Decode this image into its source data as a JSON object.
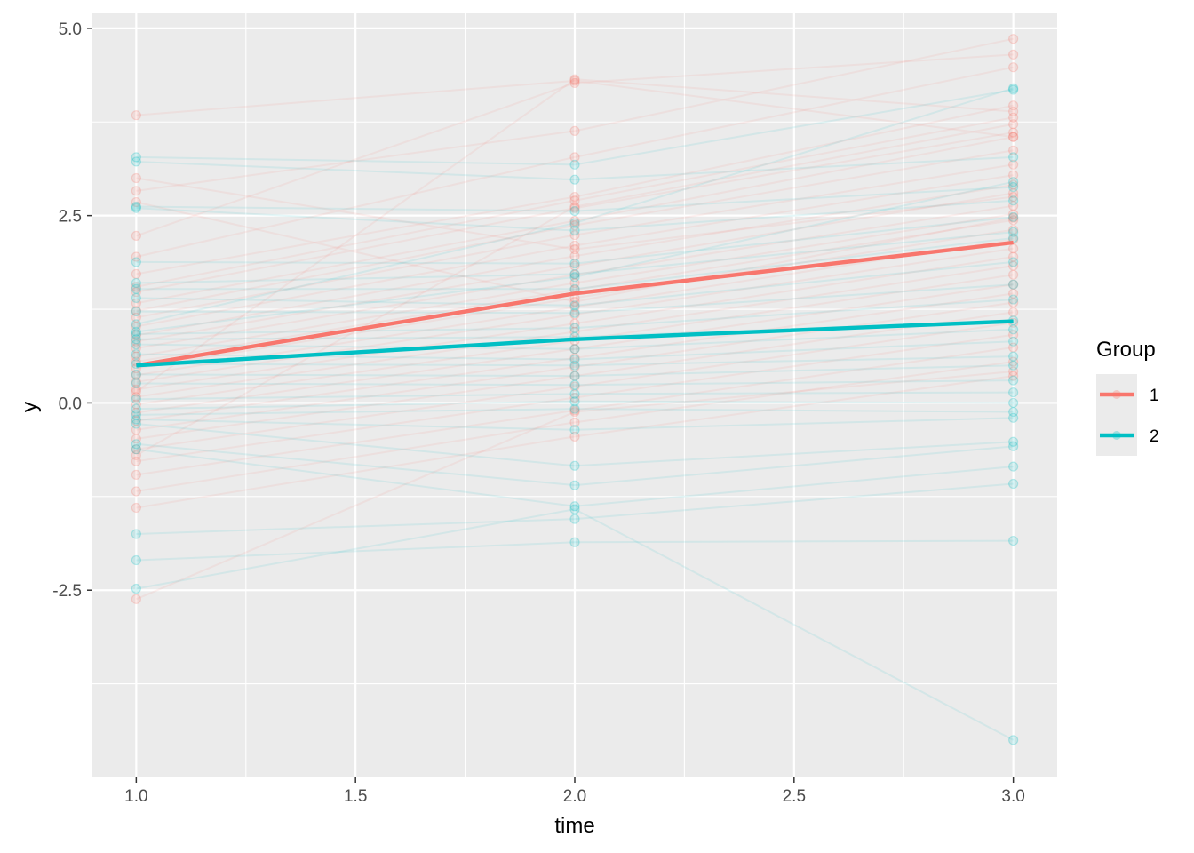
{
  "chart_data": {
    "type": "line",
    "xlabel": "time",
    "ylabel": "y",
    "xlim": [
      0.9,
      3.1
    ],
    "ylim": [
      -5,
      5.2
    ],
    "x_ticks": [
      1.0,
      1.5,
      2.0,
      2.5,
      3.0
    ],
    "x_tick_labels": [
      "1.0",
      "1.5",
      "2.0",
      "2.5",
      "3.0"
    ],
    "y_ticks": [
      -2.5,
      0.0,
      2.5,
      5.0
    ],
    "y_tick_labels": [
      "-2.5",
      "0.0",
      "2.5",
      "5.0"
    ],
    "grid": true,
    "legend": {
      "title": "Group",
      "position": "right",
      "entries": [
        "1",
        "2"
      ]
    },
    "colors": {
      "1": "#F8766D",
      "2": "#00BFC4",
      "panel": "#EBEBEB",
      "grid": "#FFFFFF"
    },
    "series": [
      {
        "name": "1",
        "x": [
          1,
          2,
          3
        ],
        "y": [
          0.5,
          1.46,
          2.14
        ]
      },
      {
        "name": "2",
        "x": [
          1,
          2,
          3
        ],
        "y": [
          0.5,
          0.85,
          1.09
        ]
      }
    ],
    "individual_trajectories": {
      "1": [
        [
          3.84,
          4.3,
          3.55
        ],
        [
          2.83,
          3.63,
          4.86
        ],
        [
          2.23,
          4.27,
          4.65
        ],
        [
          1.95,
          3.28,
          4.48
        ],
        [
          1.72,
          2.75,
          3.97
        ],
        [
          1.55,
          2.7,
          3.81
        ],
        [
          1.48,
          2.6,
          3.61
        ],
        [
          1.33,
          2.43,
          3.55
        ],
        [
          1.23,
          2.37,
          3.37
        ],
        [
          1.14,
          2.24,
          3.18
        ],
        [
          1.02,
          2.1,
          3.04
        ],
        [
          0.9,
          1.96,
          2.91
        ],
        [
          0.82,
          1.83,
          2.8
        ],
        [
          0.73,
          1.71,
          2.63
        ],
        [
          0.62,
          1.6,
          2.52
        ],
        [
          0.55,
          1.51,
          2.44
        ],
        [
          0.46,
          1.4,
          2.31
        ],
        [
          0.37,
          1.28,
          2.18
        ],
        [
          0.28,
          1.18,
          2.06
        ],
        [
          0.18,
          1.06,
          1.95
        ],
        [
          0.08,
          0.95,
          1.83
        ],
        [
          -0.02,
          0.83,
          1.71
        ],
        [
          -0.13,
          0.72,
          1.58
        ],
        [
          -0.24,
          0.6,
          1.46
        ],
        [
          -0.36,
          0.48,
          1.34
        ],
        [
          -0.48,
          0.36,
          1.21
        ],
        [
          -0.62,
          0.22,
          1.07
        ],
        [
          -0.78,
          0.07,
          0.91
        ],
        [
          -0.96,
          -0.1,
          0.74
        ],
        [
          -1.18,
          -0.26,
          0.55
        ],
        [
          -1.4,
          -0.45,
          0.36
        ],
        [
          -2.62,
          -0.12,
          0.42
        ],
        [
          3.0,
          2.05,
          2.75
        ],
        [
          2.68,
          1.35,
          2.47
        ],
        [
          0.15,
          4.32,
          3.89
        ],
        [
          -0.7,
          2.62,
          3.72
        ]
      ],
      "2": [
        [
          3.28,
          3.18,
          4.18
        ],
        [
          3.22,
          2.98,
          3.28
        ],
        [
          2.62,
          2.56,
          2.88
        ],
        [
          2.6,
          2.3,
          2.7
        ],
        [
          1.88,
          1.86,
          2.48
        ],
        [
          1.6,
          1.72,
          2.28
        ],
        [
          1.52,
          1.52,
          2.2
        ],
        [
          1.4,
          1.3,
          1.88
        ],
        [
          1.22,
          1.2,
          1.58
        ],
        [
          0.92,
          1.0,
          1.38
        ],
        [
          0.85,
          0.88,
          1.1
        ],
        [
          0.78,
          0.72,
          0.98
        ],
        [
          0.65,
          0.58,
          0.82
        ],
        [
          0.52,
          0.5,
          0.62
        ],
        [
          0.38,
          0.36,
          0.5
        ],
        [
          0.26,
          0.24,
          0.3
        ],
        [
          0.05,
          0.12,
          0.14
        ],
        [
          -0.08,
          0.02,
          0.0
        ],
        [
          -0.16,
          -0.08,
          -0.12
        ],
        [
          -0.22,
          -0.36,
          -0.2
        ],
        [
          -0.28,
          -0.84,
          -0.52
        ],
        [
          -0.55,
          -1.1,
          -0.58
        ],
        [
          -0.62,
          -1.38,
          -0.85
        ],
        [
          -1.75,
          -1.55,
          -1.08
        ],
        [
          -2.1,
          -1.86,
          -1.84
        ],
        [
          -2.48,
          -1.42,
          -4.5
        ],
        [
          1.05,
          2.4,
          4.2
        ],
        [
          0.95,
          1.68,
          2.95
        ]
      ]
    }
  }
}
